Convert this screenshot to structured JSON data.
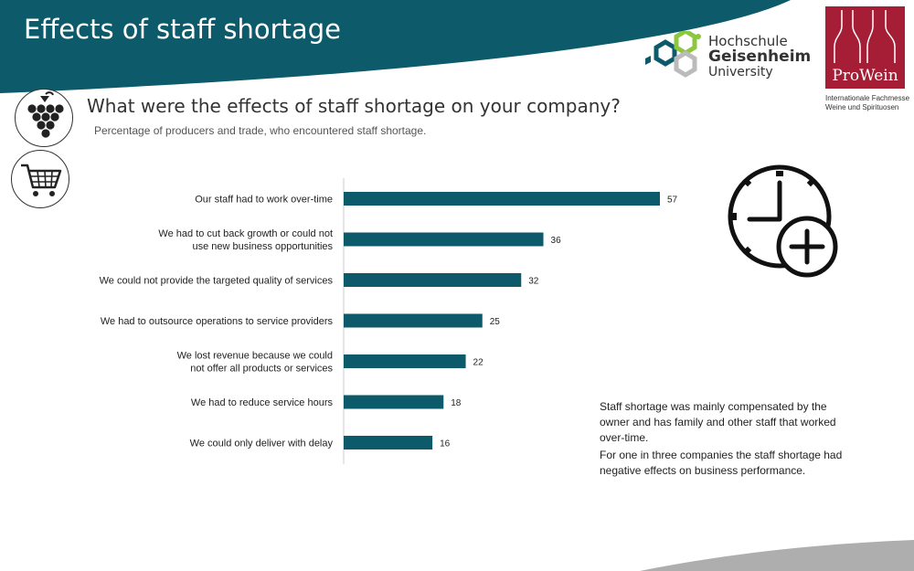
{
  "header": {
    "title": "Effects of staff shortage"
  },
  "logos": {
    "hochschule": {
      "line1": "Hochschule",
      "line2": "Geisenheim",
      "line3": "University"
    },
    "prowein": {
      "word": "ProWein",
      "sub1": "Internationale Fachmesse",
      "sub2": "Weine und Spirituosen"
    }
  },
  "icons": {
    "grapes": "grapes-icon",
    "cart": "shopping-cart-icon",
    "clock": "clock-plus-icon"
  },
  "colors": {
    "banner": "#0c5a6a",
    "bar": "#0c5a6a",
    "prowein": "#a51e36"
  },
  "chart_data": {
    "type": "bar",
    "orientation": "horizontal",
    "title": "What were the effects of staff shortage on your company?",
    "subtitle": "Percentage of producers and trade, who encountered staff shortage.",
    "categories": [
      [
        "Our staff had to work over-time"
      ],
      [
        "We had to cut back growth or could not",
        "use new business opportunities"
      ],
      [
        "We could not provide the targeted quality of services"
      ],
      [
        "We had to outsource operations to service providers"
      ],
      [
        "We lost revenue because we could",
        "not offer all products or services"
      ],
      [
        "We had to reduce service hours"
      ],
      [
        "We could only deliver with delay"
      ]
    ],
    "values": [
      57,
      36,
      32,
      25,
      22,
      18,
      16
    ],
    "xlim": [
      0,
      60
    ],
    "grid": false,
    "legend": "none"
  },
  "note": {
    "p1": "Staff shortage was mainly compensated by the owner and has family and other staff that worked over-time.",
    "p2": "For one in three companies the staff shortage had negative effects on business performance."
  }
}
